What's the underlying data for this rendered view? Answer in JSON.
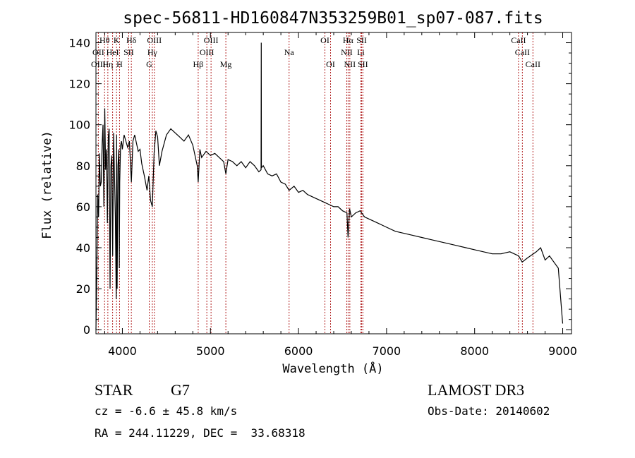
{
  "chart_data": {
    "type": "line",
    "title": "spec-56811-HD160847N353259B01_sp07-087.fits",
    "xlabel": "Wavelength (Å)",
    "ylabel": "Flux (relative)",
    "xlim": [
      3700,
      9100
    ],
    "ylim": [
      -2,
      145
    ],
    "xticks": [
      4000,
      5000,
      6000,
      7000,
      8000,
      9000
    ],
    "yticks": [
      0,
      20,
      40,
      60,
      80,
      100,
      120,
      140
    ],
    "grid": false,
    "series": [
      {
        "name": "flux",
        "x": [
          3700,
          3710,
          3720,
          3730,
          3740,
          3750,
          3760,
          3770,
          3780,
          3790,
          3800,
          3810,
          3820,
          3830,
          3840,
          3850,
          3860,
          3870,
          3880,
          3890,
          3900,
          3910,
          3920,
          3930,
          3935,
          3940,
          3950,
          3960,
          3965,
          3970,
          3980,
          3990,
          4000,
          4020,
          4040,
          4060,
          4080,
          4102,
          4120,
          4140,
          4160,
          4180,
          4200,
          4220,
          4250,
          4280,
          4300,
          4320,
          4340,
          4360,
          4380,
          4400,
          4420,
          4450,
          4500,
          4550,
          4600,
          4650,
          4700,
          4750,
          4800,
          4850,
          4861,
          4880,
          4900,
          4950,
          5000,
          5050,
          5100,
          5150,
          5175,
          5200,
          5250,
          5300,
          5350,
          5400,
          5450,
          5500,
          5550,
          5575,
          5577,
          5579,
          5600,
          5650,
          5700,
          5750,
          5800,
          5850,
          5893,
          5950,
          6000,
          6050,
          6100,
          6150,
          6200,
          6250,
          6300,
          6350,
          6400,
          6450,
          6500,
          6550,
          6563,
          6580,
          6600,
          6650,
          6700,
          6750,
          6800,
          6850,
          6900,
          6950,
          7000,
          7100,
          7200,
          7300,
          7400,
          7500,
          7600,
          7700,
          7800,
          7900,
          8000,
          8100,
          8200,
          8300,
          8400,
          8500,
          8540,
          8600,
          8700,
          8750,
          8800,
          8850,
          8900,
          8950,
          8990,
          9000
        ],
        "values": [
          0,
          28,
          66,
          55,
          86,
          70,
          72,
          90,
          100,
          60,
          108,
          78,
          88,
          52,
          94,
          98,
          20,
          80,
          85,
          36,
          96,
          76,
          55,
          15,
          95,
          20,
          80,
          88,
          30,
          72,
          90,
          92,
          88,
          95,
          92,
          89,
          92,
          72,
          92,
          95,
          91,
          87,
          88,
          81,
          75,
          68,
          75,
          63,
          60,
          86,
          97,
          94,
          80,
          87,
          95,
          98,
          96,
          94,
          92,
          95,
          90,
          80,
          72,
          88,
          84,
          87,
          85,
          86,
          84,
          82,
          76,
          83,
          82,
          80,
          82,
          79,
          82,
          80,
          77,
          78,
          140,
          79,
          80,
          76,
          75,
          76,
          72,
          71,
          68,
          70,
          67,
          68,
          66,
          65,
          64,
          63,
          62,
          61,
          60,
          60,
          58,
          57,
          45,
          59,
          55,
          57,
          58,
          55,
          54,
          53,
          52,
          51,
          50,
          48,
          47,
          46,
          45,
          44,
          43,
          42,
          41,
          40,
          39,
          38,
          37,
          37,
          38,
          36,
          33,
          35,
          38,
          40,
          34,
          36,
          33,
          30,
          8,
          3
        ]
      }
    ],
    "spectral_lines": [
      {
        "label": "Hθ",
        "x": 3798,
        "row": 1
      },
      {
        "label": "K",
        "x": 3934,
        "row": 1
      },
      {
        "label": "Hδ",
        "x": 4102,
        "row": 1
      },
      {
        "label": "OIII",
        "x": 4363,
        "row": 1
      },
      {
        "label": "OIII",
        "x": 5007,
        "row": 1
      },
      {
        "label": "OI",
        "x": 6300,
        "row": 1
      },
      {
        "label": "Hα",
        "x": 6563,
        "row": 1
      },
      {
        "label": "SII",
        "x": 6717,
        "row": 1
      },
      {
        "label": "CaII",
        "x": 8498,
        "row": 1
      },
      {
        "label": "OII",
        "x": 3727,
        "row": 2
      },
      {
        "label": "HeI",
        "x": 3889,
        "row": 2
      },
      {
        "label": "SII",
        "x": 4072,
        "row": 2
      },
      {
        "label": "Hγ",
        "x": 4340,
        "row": 2
      },
      {
        "label": "OIII",
        "x": 4959,
        "row": 2
      },
      {
        "label": "Na",
        "x": 5893,
        "row": 2
      },
      {
        "label": "NII",
        "x": 6548,
        "row": 2
      },
      {
        "label": "Li",
        "x": 6708,
        "row": 2
      },
      {
        "label": "CaII",
        "x": 8542,
        "row": 2
      },
      {
        "label": "OIII",
        "x": 3727,
        "row": 3
      },
      {
        "label": "Hη",
        "x": 3835,
        "row": 3
      },
      {
        "label": "H",
        "x": 3968,
        "row": 3
      },
      {
        "label": "G",
        "x": 4305,
        "row": 3
      },
      {
        "label": "Hβ",
        "x": 4861,
        "row": 3
      },
      {
        "label": "Mg",
        "x": 5175,
        "row": 3
      },
      {
        "label": "OI",
        "x": 6364,
        "row": 3
      },
      {
        "label": "NII",
        "x": 6583,
        "row": 3
      },
      {
        "label": "SII",
        "x": 6731,
        "row": 3
      },
      {
        "label": "CaII",
        "x": 8662,
        "row": 3
      }
    ]
  },
  "info": {
    "object_class": "STAR",
    "subclass": "G7",
    "survey": "LAMOST DR3",
    "redshift": "cz = -6.6 ± 45.8 km/s",
    "obs_date": "Obs-Date: 20140602",
    "coords": "RA = 244.11229, DEC =  33.68318"
  },
  "colors": {
    "line_marker": "#b22222",
    "spectrum": "#000000",
    "axes": "#000000"
  }
}
